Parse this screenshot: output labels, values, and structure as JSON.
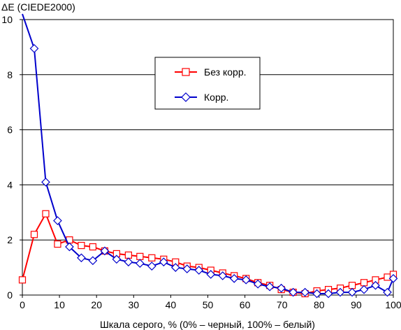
{
  "chart_data": {
    "type": "line",
    "title": "",
    "ylabel": "ΔE (CIEDE2000)",
    "xlabel": "Шкала серого, % (0% – черный, 100% – белый)",
    "xlim": [
      0,
      100
    ],
    "ylim": [
      0,
      10
    ],
    "x_ticks": [
      0,
      10,
      20,
      30,
      40,
      50,
      60,
      70,
      80,
      90,
      100
    ],
    "y_ticks": [
      0,
      2,
      4,
      6,
      8,
      10
    ],
    "grid": "horizontal",
    "legend_position": "upper-middle",
    "series": [
      {
        "name": "Без корр.",
        "color": "#ff0000",
        "marker": "square",
        "x": [
          0,
          3.2,
          6.3,
          9.5,
          12.7,
          15.9,
          19.0,
          22.2,
          25.4,
          28.6,
          31.7,
          34.9,
          38.1,
          41.3,
          44.4,
          47.6,
          50.8,
          54.0,
          57.1,
          60.3,
          63.5,
          66.7,
          69.8,
          73.0,
          76.2,
          79.4,
          82.5,
          85.7,
          88.9,
          92.1,
          95.2,
          98.4,
          100
        ],
        "y": [
          0.55,
          2.2,
          2.95,
          1.85,
          2.0,
          1.8,
          1.75,
          1.6,
          1.5,
          1.45,
          1.4,
          1.35,
          1.3,
          1.2,
          1.05,
          1.0,
          0.9,
          0.8,
          0.7,
          0.6,
          0.45,
          0.35,
          0.2,
          0.1,
          0.05,
          0.15,
          0.2,
          0.25,
          0.35,
          0.45,
          0.55,
          0.65,
          0.75
        ]
      },
      {
        "name": "Корр.",
        "color": "#0000cc",
        "marker": "diamond",
        "x": [
          0,
          3.2,
          6.3,
          9.5,
          12.7,
          15.9,
          19.0,
          22.2,
          25.4,
          28.6,
          31.7,
          34.9,
          38.1,
          41.3,
          44.4,
          47.6,
          50.8,
          54.0,
          57.1,
          60.3,
          63.5,
          66.7,
          69.8,
          73.0,
          76.2,
          79.4,
          82.5,
          85.7,
          88.9,
          92.1,
          95.2,
          98.4,
          100
        ],
        "y": [
          10.3,
          8.95,
          4.1,
          2.7,
          1.75,
          1.35,
          1.25,
          1.6,
          1.3,
          1.2,
          1.15,
          1.05,
          1.2,
          1.0,
          0.95,
          0.9,
          0.75,
          0.7,
          0.6,
          0.55,
          0.4,
          0.3,
          0.25,
          0.1,
          0.1,
          0.05,
          0.05,
          0.1,
          0.1,
          0.2,
          0.35,
          0.1,
          0.6
        ]
      }
    ]
  }
}
